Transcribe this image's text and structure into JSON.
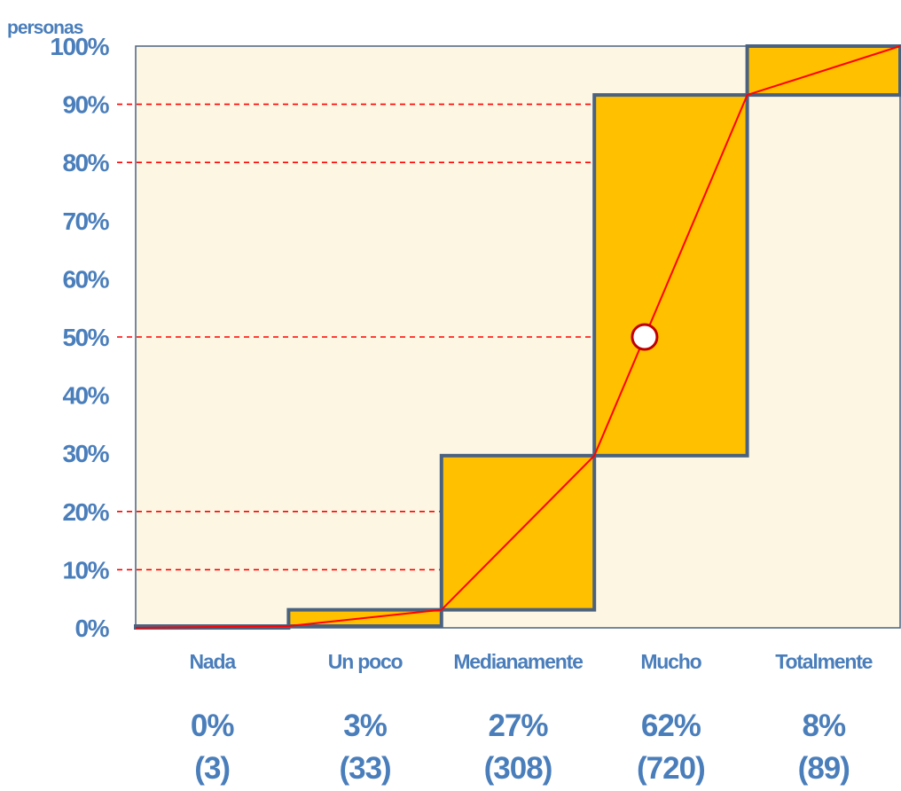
{
  "chart_data": {
    "type": "bar",
    "subtype": "cumulative-step-ogive",
    "y_unit_label": "personas",
    "yticks": [
      "0%",
      "10%",
      "20%",
      "30%",
      "40%",
      "50%",
      "60%",
      "70%",
      "80%",
      "90%",
      "100%"
    ],
    "ylim": [
      0,
      100
    ],
    "grid": false,
    "categories": [
      "Nada",
      "Un poco",
      "Medianamente",
      "Mucho",
      "Totalmente"
    ],
    "percent_labels": [
      "0%",
      "3%",
      "27%",
      "62%",
      "8%"
    ],
    "count_labels": [
      "(3)",
      "(33)",
      "(308)",
      "(720)",
      "(89)"
    ],
    "values": [
      0.3,
      2.8,
      26.5,
      62.0,
      7.7
    ],
    "cumulative": [
      0.3,
      3.1,
      29.6,
      91.6,
      100.0
    ],
    "reference_lines_y": [
      10,
      20,
      50,
      80,
      90
    ],
    "median_marker_y": 50,
    "colors": {
      "plot_background": "#fdf6e3",
      "bar_fill": "#ffc000",
      "bar_stroke": "#4a6280",
      "ogive_line": "#ff0000",
      "reference_line": "#ff0000",
      "marker_stroke": "#c00000",
      "marker_fill": "#ffffff",
      "text": "#4a7ebb"
    }
  }
}
